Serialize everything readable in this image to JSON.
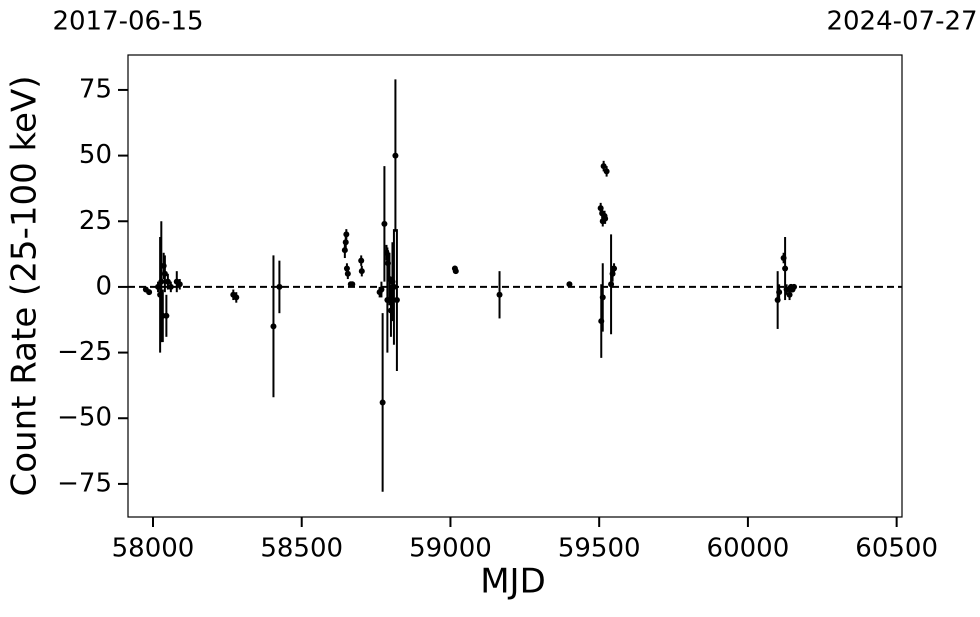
{
  "chart_data": {
    "type": "errorbar",
    "xlabel": "MJD",
    "ylabel": "Count Rate (25-100 keV)",
    "xlim": [
      57916,
      60518
    ],
    "ylim": [
      -87.6,
      88.3
    ],
    "xticks": [
      58000,
      58500,
      59000,
      59500,
      60000,
      60500
    ],
    "yticks": [
      {
        "value": -75,
        "label": "−75"
      },
      {
        "value": -50,
        "label": "−50"
      },
      {
        "value": -25,
        "label": "−25"
      },
      0,
      25,
      50,
      75
    ],
    "x2ticks": [
      {
        "value": 57916,
        "label": "2017-06-15"
      },
      {
        "value": 60518,
        "label": "2024-07-27"
      }
    ],
    "hline": 0,
    "series": [
      {
        "color": "#000000",
        "x": [
          57976,
          57987,
          58017,
          58024,
          58028,
          58033,
          58036,
          58040,
          58045,
          58050,
          58060,
          58080,
          58090,
          58270,
          58280,
          58405,
          58425,
          58645,
          58648,
          58650,
          58652,
          58655,
          58665,
          58670,
          58700,
          58702,
          58762,
          58768,
          58772,
          58778,
          58785,
          58788,
          58790,
          58795,
          58800,
          58805,
          58810,
          58815,
          58820,
          59015,
          59018,
          59165,
          59400,
          59505,
          59510,
          59512,
          59515,
          59518,
          59520,
          59525,
          59507,
          59512,
          59540,
          59545,
          59550,
          60100,
          60105,
          60120,
          60125,
          60130,
          60140,
          60145,
          60150,
          60155
        ],
        "values": [
          -1,
          -2,
          0,
          -3,
          2,
          -11,
          8,
          5,
          -11,
          2,
          0,
          2,
          1,
          -3,
          -4,
          -15,
          0,
          14,
          17,
          20,
          7,
          5,
          1,
          1,
          10,
          6,
          -2,
          -1,
          -44,
          24,
          13,
          -5,
          9,
          3,
          -9,
          2,
          0,
          50,
          -5,
          7,
          6,
          -3,
          1,
          30,
          28,
          25,
          46,
          27,
          26,
          44,
          -13,
          -4,
          1,
          5,
          7,
          -5,
          -2,
          11,
          7,
          -1,
          -3,
          0,
          -1,
          0
        ],
        "errors": [
          1,
          1,
          2,
          22,
          23,
          10,
          5,
          7,
          8,
          3,
          2,
          4,
          2,
          2,
          2,
          27,
          10,
          3,
          3,
          2,
          2,
          2,
          1,
          1,
          2,
          2,
          2,
          3,
          34,
          22,
          3,
          20,
          5,
          10,
          10,
          15,
          22,
          29,
          27,
          1,
          1,
          9,
          1,
          2,
          2,
          2,
          2,
          2,
          2,
          2,
          14,
          13,
          19,
          3,
          2,
          11,
          3,
          2,
          12,
          2,
          2,
          1,
          1,
          1
        ]
      }
    ]
  }
}
